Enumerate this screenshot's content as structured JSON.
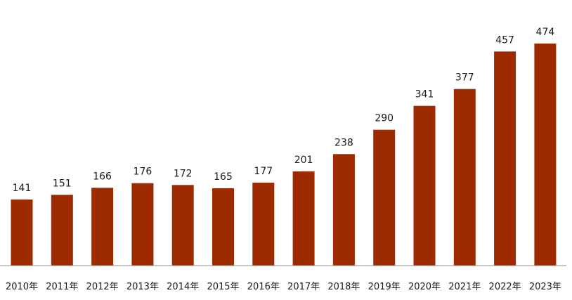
{
  "colors": {
    "bar": "#9E2A00",
    "axis": "#8C8C8C",
    "text": "#1a1a1a"
  },
  "chart_data": {
    "type": "bar",
    "title": "",
    "xlabel": "",
    "ylabel": "",
    "categories": [
      "2010年",
      "2011年",
      "2012年",
      "2013年",
      "2014年",
      "2015年",
      "2016年",
      "2017年",
      "2018年",
      "2019年",
      "2020年",
      "2021年",
      "2022年",
      "2023年"
    ],
    "values": [
      141,
      151,
      166,
      176,
      172,
      165,
      177,
      201,
      238,
      290,
      341,
      377,
      457,
      474
    ],
    "ylim": [
      0,
      474
    ],
    "data_labels": true,
    "grid": false,
    "legend": "none"
  }
}
